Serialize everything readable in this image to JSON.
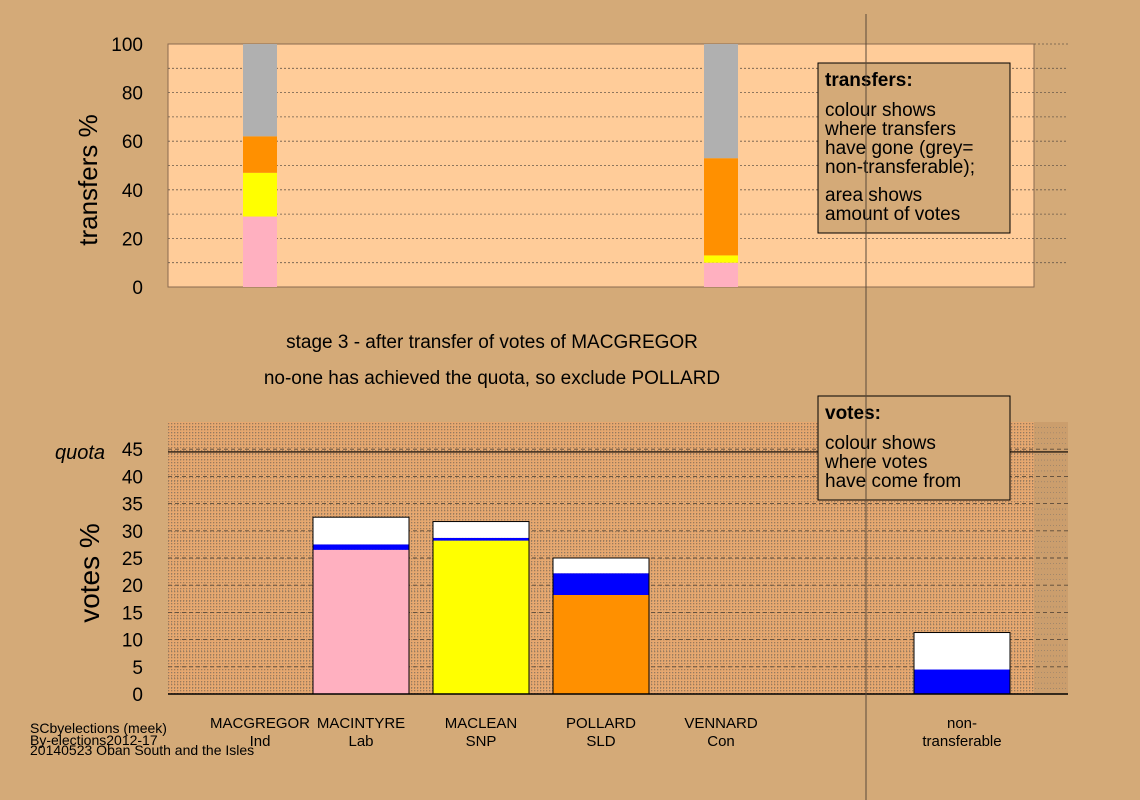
{
  "chart_data": [
    {
      "type": "bar",
      "ylabel": "transfers %",
      "ylim": [
        0,
        100
      ],
      "yticks": [
        0,
        20,
        40,
        60,
        80,
        100
      ],
      "grid": true,
      "stack_order_bottom_to_top": [
        "MACINTYRE",
        "MACLEAN",
        "POLLARD",
        "non-transferable"
      ],
      "colors": [
        "#ffb0c0",
        "#ffff00",
        "#ff9000",
        "#b0b0b0"
      ],
      "stacks": [
        {
          "candidate_index": 0,
          "values": [
            29,
            18,
            15,
            38
          ]
        },
        {
          "candidate_index": 4,
          "values": [
            10,
            3,
            40,
            47
          ]
        }
      ]
    },
    {
      "type": "bar",
      "ylabel": "votes %",
      "quota_label": "quota",
      "quota": 44.5,
      "ylim": [
        0,
        50
      ],
      "yticks": [
        0,
        5,
        10,
        15,
        20,
        25,
        30,
        35,
        40,
        45
      ],
      "grid": true,
      "categories": [
        {
          "name": "MACGREGOR",
          "party": "Ind"
        },
        {
          "name": "MACINTYRE",
          "party": "Lab"
        },
        {
          "name": "MACLEAN",
          "party": "SNP"
        },
        {
          "name": "POLLARD",
          "party": "SLD"
        },
        {
          "name": "VENNARD",
          "party": "Con"
        },
        {
          "name": "non-",
          "party": "transferable"
        }
      ],
      "segments": [
        [],
        [
          {
            "value": 26.5,
            "color": "#ffb0c0"
          },
          {
            "value": 1,
            "color": "#0000ff"
          },
          {
            "value": 5,
            "color": "#ffffff"
          }
        ],
        [
          {
            "value": 28.2,
            "color": "#ffff00"
          },
          {
            "value": 0.5,
            "color": "#0000ff"
          },
          {
            "value": 3,
            "color": "#ffffff"
          }
        ],
        [
          {
            "value": 18.2,
            "color": "#ff9000"
          },
          {
            "value": 4,
            "color": "#0000ff"
          },
          {
            "value": 2.8,
            "color": "#ffffff"
          }
        ],
        [],
        [
          {
            "value": 4.5,
            "color": "#0000ff"
          },
          {
            "value": 6.8,
            "color": "#ffffff"
          }
        ]
      ]
    }
  ],
  "stage_line1": "stage 3 - after transfer of votes of MACGREGOR",
  "stage_line2": "no-one has achieved the quota, so exclude POLLARD",
  "transfers_box": {
    "title": "transfers:",
    "lines1": [
      "colour shows",
      "where transfers",
      "have gone (grey=",
      "non-transferable);"
    ],
    "lines2": [
      "area shows",
      "amount of votes"
    ]
  },
  "votes_box": {
    "title": "votes:",
    "lines1": [
      "colour shows",
      "where votes",
      "have come from"
    ]
  },
  "footer": [
    "SCbyelections (meek)",
    "By-elections2012-17",
    "20140523 Oban South and the Isles"
  ]
}
